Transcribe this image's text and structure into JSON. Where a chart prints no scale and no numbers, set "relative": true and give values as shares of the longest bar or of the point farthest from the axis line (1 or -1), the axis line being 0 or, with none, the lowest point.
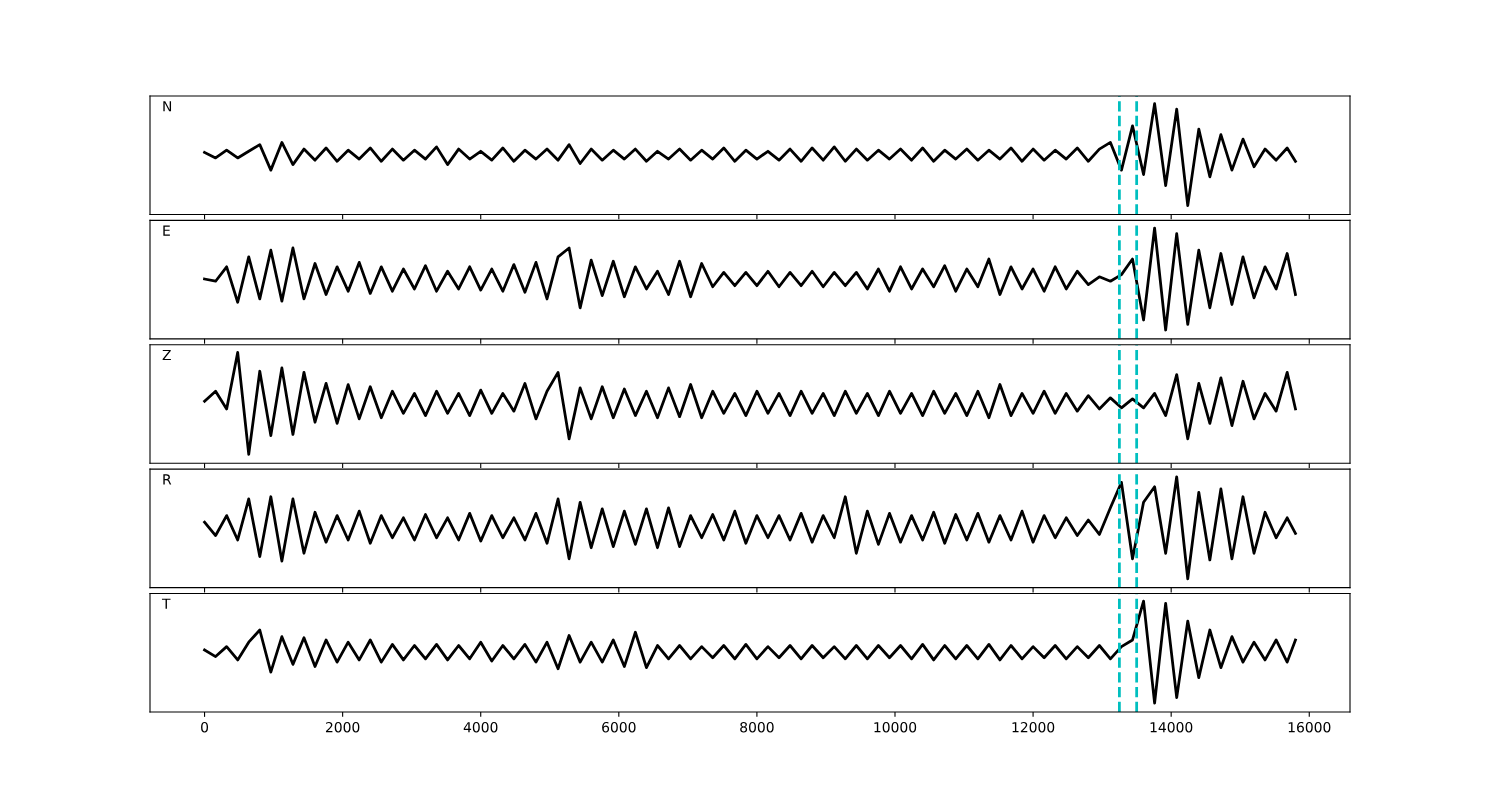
{
  "chart_data": [
    {
      "type": "line",
      "title": "N",
      "relative": true,
      "xlim": [
        -790,
        16590
      ],
      "xticks": [
        0,
        2000,
        4000,
        6000,
        8000,
        10000,
        12000,
        14000,
        16000
      ],
      "tick_labels": false,
      "grid": false,
      "x": [
        0,
        160,
        320,
        480,
        640,
        800,
        960,
        1120,
        1280,
        1440,
        1600,
        1760,
        1920,
        2080,
        2240,
        2400,
        2560,
        2720,
        2880,
        3040,
        3200,
        3360,
        3520,
        3680,
        3840,
        4000,
        4160,
        4320,
        4480,
        4640,
        4800,
        4960,
        5120,
        5280,
        5440,
        5600,
        5760,
        5920,
        6080,
        6240,
        6400,
        6560,
        6720,
        6880,
        7040,
        7200,
        7360,
        7520,
        7680,
        7840,
        8000,
        8160,
        8320,
        8480,
        8640,
        8800,
        8960,
        9120,
        9280,
        9440,
        9600,
        9760,
        9920,
        10080,
        10240,
        10400,
        10560,
        10720,
        10880,
        11040,
        11200,
        11360,
        11520,
        11680,
        11840,
        12000,
        12160,
        12320,
        12480,
        12640,
        12800,
        12960,
        13120,
        13280,
        13440,
        13600,
        13760,
        13920,
        14080,
        14240,
        14400,
        14560,
        14720,
        14880,
        15040,
        15200,
        15360,
        15520,
        15680,
        15800
      ],
      "series": [
        {
          "color": "#000000",
          "values": [
            0.56,
            0.51,
            0.58,
            0.51,
            0.57,
            0.63,
            0.4,
            0.65,
            0.45,
            0.59,
            0.49,
            0.6,
            0.48,
            0.58,
            0.5,
            0.6,
            0.48,
            0.59,
            0.49,
            0.58,
            0.5,
            0.61,
            0.45,
            0.59,
            0.5,
            0.57,
            0.49,
            0.6,
            0.48,
            0.58,
            0.5,
            0.59,
            0.49,
            0.63,
            0.46,
            0.59,
            0.49,
            0.58,
            0.5,
            0.59,
            0.48,
            0.57,
            0.5,
            0.59,
            0.49,
            0.58,
            0.5,
            0.6,
            0.48,
            0.58,
            0.5,
            0.57,
            0.49,
            0.59,
            0.48,
            0.6,
            0.49,
            0.61,
            0.48,
            0.59,
            0.49,
            0.58,
            0.5,
            0.59,
            0.49,
            0.6,
            0.48,
            0.58,
            0.5,
            0.59,
            0.49,
            0.58,
            0.5,
            0.6,
            0.48,
            0.59,
            0.49,
            0.58,
            0.5,
            0.6,
            0.48,
            0.59,
            0.65,
            0.4,
            0.8,
            0.36,
            1.0,
            0.26,
            0.95,
            0.08,
            0.77,
            0.34,
            0.72,
            0.4,
            0.68,
            0.43,
            0.59,
            0.49,
            0.6,
            0.48
          ]
        }
      ],
      "ref_lines": [
        {
          "axis": "x",
          "value": 13250,
          "color": "#00bfbf",
          "line_style": "dashed"
        },
        {
          "axis": "x",
          "value": 13500,
          "color": "#00bfbf",
          "line_style": "dashed"
        }
      ]
    },
    {
      "type": "line",
      "title": "E",
      "relative": true,
      "xlim": [
        -790,
        16590
      ],
      "xticks": [
        0,
        2000,
        4000,
        6000,
        8000,
        10000,
        12000,
        14000,
        16000
      ],
      "tick_labels": false,
      "grid": false,
      "x": [
        0,
        160,
        320,
        480,
        640,
        800,
        960,
        1120,
        1280,
        1440,
        1600,
        1760,
        1920,
        2080,
        2240,
        2400,
        2560,
        2720,
        2880,
        3040,
        3200,
        3360,
        3520,
        3680,
        3840,
        4000,
        4160,
        4320,
        4480,
        4640,
        4800,
        4960,
        5120,
        5280,
        5440,
        5600,
        5760,
        5920,
        6080,
        6240,
        6400,
        6560,
        6720,
        6880,
        7040,
        7200,
        7360,
        7520,
        7680,
        7840,
        8000,
        8160,
        8320,
        8480,
        8640,
        8800,
        8960,
        9120,
        9280,
        9440,
        9600,
        9760,
        9920,
        10080,
        10240,
        10400,
        10560,
        10720,
        10880,
        11040,
        11200,
        11360,
        11520,
        11680,
        11840,
        12000,
        12160,
        12320,
        12480,
        12640,
        12800,
        12960,
        13120,
        13280,
        13440,
        13600,
        13760,
        13920,
        14080,
        14240,
        14400,
        14560,
        14720,
        14880,
        15040,
        15200,
        15360,
        15520,
        15680,
        15800
      ],
      "series": [
        {
          "color": "#000000",
          "values": [
            0.54,
            0.52,
            0.65,
            0.33,
            0.74,
            0.36,
            0.8,
            0.34,
            0.82,
            0.36,
            0.68,
            0.4,
            0.65,
            0.43,
            0.69,
            0.41,
            0.65,
            0.43,
            0.63,
            0.45,
            0.66,
            0.43,
            0.61,
            0.45,
            0.65,
            0.44,
            0.63,
            0.43,
            0.67,
            0.42,
            0.69,
            0.36,
            0.74,
            0.82,
            0.28,
            0.71,
            0.39,
            0.7,
            0.38,
            0.65,
            0.45,
            0.61,
            0.4,
            0.7,
            0.38,
            0.68,
            0.47,
            0.6,
            0.48,
            0.6,
            0.48,
            0.61,
            0.47,
            0.6,
            0.48,
            0.61,
            0.47,
            0.6,
            0.48,
            0.6,
            0.45,
            0.63,
            0.43,
            0.65,
            0.45,
            0.63,
            0.47,
            0.66,
            0.43,
            0.63,
            0.47,
            0.72,
            0.4,
            0.65,
            0.45,
            0.63,
            0.43,
            0.65,
            0.45,
            0.61,
            0.49,
            0.56,
            0.52,
            0.58,
            0.72,
            0.17,
            1.0,
            0.08,
            0.95,
            0.13,
            0.8,
            0.28,
            0.77,
            0.31,
            0.74,
            0.37,
            0.65,
            0.45,
            0.77,
            0.4
          ]
        }
      ],
      "ref_lines": [
        {
          "axis": "x",
          "value": 13250,
          "color": "#00bfbf",
          "line_style": "dashed"
        },
        {
          "axis": "x",
          "value": 13500,
          "color": "#00bfbf",
          "line_style": "dashed"
        }
      ]
    },
    {
      "type": "line",
      "title": "Z",
      "relative": true,
      "xlim": [
        -790,
        16590
      ],
      "xticks": [
        0,
        2000,
        4000,
        6000,
        8000,
        10000,
        12000,
        14000,
        16000
      ],
      "tick_labels": false,
      "grid": false,
      "x": [
        0,
        160,
        320,
        480,
        640,
        800,
        960,
        1120,
        1280,
        1440,
        1600,
        1760,
        1920,
        2080,
        2240,
        2400,
        2560,
        2720,
        2880,
        3040,
        3200,
        3360,
        3520,
        3680,
        3840,
        4000,
        4160,
        4320,
        4480,
        4640,
        4800,
        4960,
        5120,
        5280,
        5440,
        5600,
        5760,
        5920,
        6080,
        6240,
        6400,
        6560,
        6720,
        6880,
        7040,
        7200,
        7360,
        7520,
        7680,
        7840,
        8000,
        8160,
        8320,
        8480,
        8640,
        8800,
        8960,
        9120,
        9280,
        9440,
        9600,
        9760,
        9920,
        10080,
        10240,
        10400,
        10560,
        10720,
        10880,
        11040,
        11200,
        11360,
        11520,
        11680,
        11840,
        12000,
        12160,
        12320,
        12480,
        12640,
        12800,
        12960,
        13120,
        13280,
        13440,
        13600,
        13760,
        13920,
        14080,
        14240,
        14400,
        14560,
        14720,
        14880,
        15040,
        15200,
        15360,
        15520,
        15680,
        15800
      ],
      "series": [
        {
          "color": "#000000",
          "values": [
            0.56,
            0.65,
            0.49,
            1.0,
            0.08,
            0.83,
            0.25,
            0.86,
            0.26,
            0.82,
            0.37,
            0.72,
            0.36,
            0.71,
            0.4,
            0.69,
            0.41,
            0.65,
            0.45,
            0.63,
            0.43,
            0.65,
            0.45,
            0.63,
            0.43,
            0.66,
            0.45,
            0.63,
            0.47,
            0.72,
            0.4,
            0.65,
            0.82,
            0.22,
            0.68,
            0.4,
            0.69,
            0.41,
            0.67,
            0.43,
            0.65,
            0.41,
            0.68,
            0.42,
            0.71,
            0.41,
            0.65,
            0.45,
            0.63,
            0.43,
            0.65,
            0.45,
            0.63,
            0.43,
            0.65,
            0.45,
            0.63,
            0.43,
            0.65,
            0.45,
            0.63,
            0.43,
            0.65,
            0.45,
            0.63,
            0.43,
            0.65,
            0.45,
            0.63,
            0.43,
            0.65,
            0.41,
            0.71,
            0.43,
            0.63,
            0.45,
            0.65,
            0.45,
            0.63,
            0.47,
            0.61,
            0.49,
            0.59,
            0.5,
            0.58,
            0.5,
            0.63,
            0.43,
            0.8,
            0.22,
            0.72,
            0.36,
            0.77,
            0.34,
            0.74,
            0.4,
            0.63,
            0.47,
            0.82,
            0.49
          ]
        }
      ],
      "ref_lines": [
        {
          "axis": "x",
          "value": 13250,
          "color": "#00bfbf",
          "line_style": "dashed"
        },
        {
          "axis": "x",
          "value": 13500,
          "color": "#00bfbf",
          "line_style": "dashed"
        }
      ]
    },
    {
      "type": "line",
      "title": "R",
      "relative": true,
      "xlim": [
        -790,
        16590
      ],
      "xticks": [
        0,
        2000,
        4000,
        6000,
        8000,
        10000,
        12000,
        14000,
        16000
      ],
      "tick_labels": false,
      "grid": false,
      "x": [
        0,
        160,
        320,
        480,
        640,
        800,
        960,
        1120,
        1280,
        1440,
        1600,
        1760,
        1920,
        2080,
        2240,
        2400,
        2560,
        2720,
        2880,
        3040,
        3200,
        3360,
        3520,
        3680,
        3840,
        4000,
        4160,
        4320,
        4480,
        4640,
        4800,
        4960,
        5120,
        5280,
        5440,
        5600,
        5760,
        5920,
        6080,
        6240,
        6400,
        6560,
        6720,
        6880,
        7040,
        7200,
        7360,
        7520,
        7680,
        7840,
        8000,
        8160,
        8320,
        8480,
        8640,
        8800,
        8960,
        9120,
        9280,
        9440,
        9600,
        9760,
        9920,
        10080,
        10240,
        10400,
        10560,
        10720,
        10880,
        11040,
        11200,
        11360,
        11520,
        11680,
        11840,
        12000,
        12160,
        12320,
        12480,
        12640,
        12800,
        12960,
        13120,
        13280,
        13440,
        13600,
        13760,
        13920,
        14080,
        14240,
        14400,
        14560,
        14720,
        14880,
        15040,
        15200,
        15360,
        15520,
        15680,
        15800
      ],
      "series": [
        {
          "color": "#000000",
          "values": [
            0.59,
            0.47,
            0.65,
            0.43,
            0.8,
            0.28,
            0.82,
            0.24,
            0.8,
            0.31,
            0.68,
            0.41,
            0.65,
            0.43,
            0.69,
            0.4,
            0.65,
            0.45,
            0.63,
            0.43,
            0.66,
            0.45,
            0.63,
            0.43,
            0.67,
            0.42,
            0.65,
            0.45,
            0.63,
            0.43,
            0.67,
            0.4,
            0.8,
            0.26,
            0.77,
            0.36,
            0.71,
            0.37,
            0.69,
            0.39,
            0.71,
            0.36,
            0.72,
            0.37,
            0.65,
            0.45,
            0.66,
            0.43,
            0.69,
            0.4,
            0.65,
            0.45,
            0.65,
            0.43,
            0.67,
            0.41,
            0.65,
            0.45,
            0.82,
            0.31,
            0.69,
            0.39,
            0.67,
            0.41,
            0.65,
            0.43,
            0.68,
            0.4,
            0.66,
            0.43,
            0.67,
            0.41,
            0.65,
            0.43,
            0.69,
            0.41,
            0.65,
            0.45,
            0.63,
            0.47,
            0.61,
            0.48,
            0.72,
            0.95,
            0.26,
            0.77,
            0.91,
            0.31,
            1.0,
            0.08,
            0.86,
            0.25,
            0.89,
            0.26,
            0.82,
            0.31,
            0.68,
            0.45,
            0.63,
            0.49
          ]
        }
      ],
      "ref_lines": [
        {
          "axis": "x",
          "value": 13250,
          "color": "#00bfbf",
          "line_style": "dashed"
        },
        {
          "axis": "x",
          "value": 13500,
          "color": "#00bfbf",
          "line_style": "dashed"
        }
      ]
    },
    {
      "type": "line",
      "title": "T",
      "relative": true,
      "xlim": [
        -790,
        16590
      ],
      "xticks": [
        0,
        2000,
        4000,
        6000,
        8000,
        10000,
        12000,
        14000,
        16000
      ],
      "tick_labels": "x",
      "grid": false,
      "x": [
        0,
        160,
        320,
        480,
        640,
        800,
        960,
        1120,
        1280,
        1440,
        1600,
        1760,
        1920,
        2080,
        2240,
        2400,
        2560,
        2720,
        2880,
        3040,
        3200,
        3360,
        3520,
        3680,
        3840,
        4000,
        4160,
        4320,
        4480,
        4640,
        4800,
        4960,
        5120,
        5280,
        5440,
        5600,
        5760,
        5920,
        6080,
        6240,
        6400,
        6560,
        6720,
        6880,
        7040,
        7200,
        7360,
        7520,
        7680,
        7840,
        8000,
        8160,
        8320,
        8480,
        8640,
        8800,
        8960,
        9120,
        9280,
        9440,
        9600,
        9760,
        9920,
        10080,
        10240,
        10400,
        10560,
        10720,
        10880,
        11040,
        11200,
        11360,
        11520,
        11680,
        11840,
        12000,
        12160,
        12320,
        12480,
        12640,
        12800,
        12960,
        13120,
        13280,
        13440,
        13600,
        13760,
        13920,
        14080,
        14240,
        14400,
        14560,
        14720,
        14880,
        15040,
        15200,
        15360,
        15520,
        15680,
        15800
      ],
      "series": [
        {
          "color": "#000000",
          "values": [
            0.56,
            0.5,
            0.59,
            0.47,
            0.63,
            0.74,
            0.36,
            0.68,
            0.43,
            0.67,
            0.41,
            0.65,
            0.45,
            0.63,
            0.47,
            0.65,
            0.45,
            0.61,
            0.47,
            0.6,
            0.48,
            0.61,
            0.47,
            0.6,
            0.48,
            0.63,
            0.46,
            0.6,
            0.48,
            0.61,
            0.45,
            0.63,
            0.39,
            0.69,
            0.45,
            0.63,
            0.45,
            0.65,
            0.41,
            0.72,
            0.4,
            0.6,
            0.48,
            0.6,
            0.48,
            0.59,
            0.49,
            0.6,
            0.48,
            0.61,
            0.48,
            0.59,
            0.49,
            0.6,
            0.48,
            0.6,
            0.49,
            0.59,
            0.48,
            0.6,
            0.48,
            0.6,
            0.49,
            0.6,
            0.48,
            0.61,
            0.47,
            0.6,
            0.48,
            0.6,
            0.48,
            0.61,
            0.47,
            0.6,
            0.48,
            0.59,
            0.49,
            0.6,
            0.48,
            0.59,
            0.49,
            0.6,
            0.48,
            0.59,
            0.65,
            1.0,
            0.08,
            0.98,
            0.13,
            0.82,
            0.31,
            0.74,
            0.4,
            0.68,
            0.45,
            0.63,
            0.47,
            0.65,
            0.45,
            0.65
          ]
        }
      ],
      "ref_lines": [
        {
          "axis": "x",
          "value": 13250,
          "color": "#00bfbf",
          "line_style": "dashed"
        },
        {
          "axis": "x",
          "value": 13500,
          "color": "#00bfbf",
          "line_style": "dashed"
        }
      ]
    }
  ]
}
